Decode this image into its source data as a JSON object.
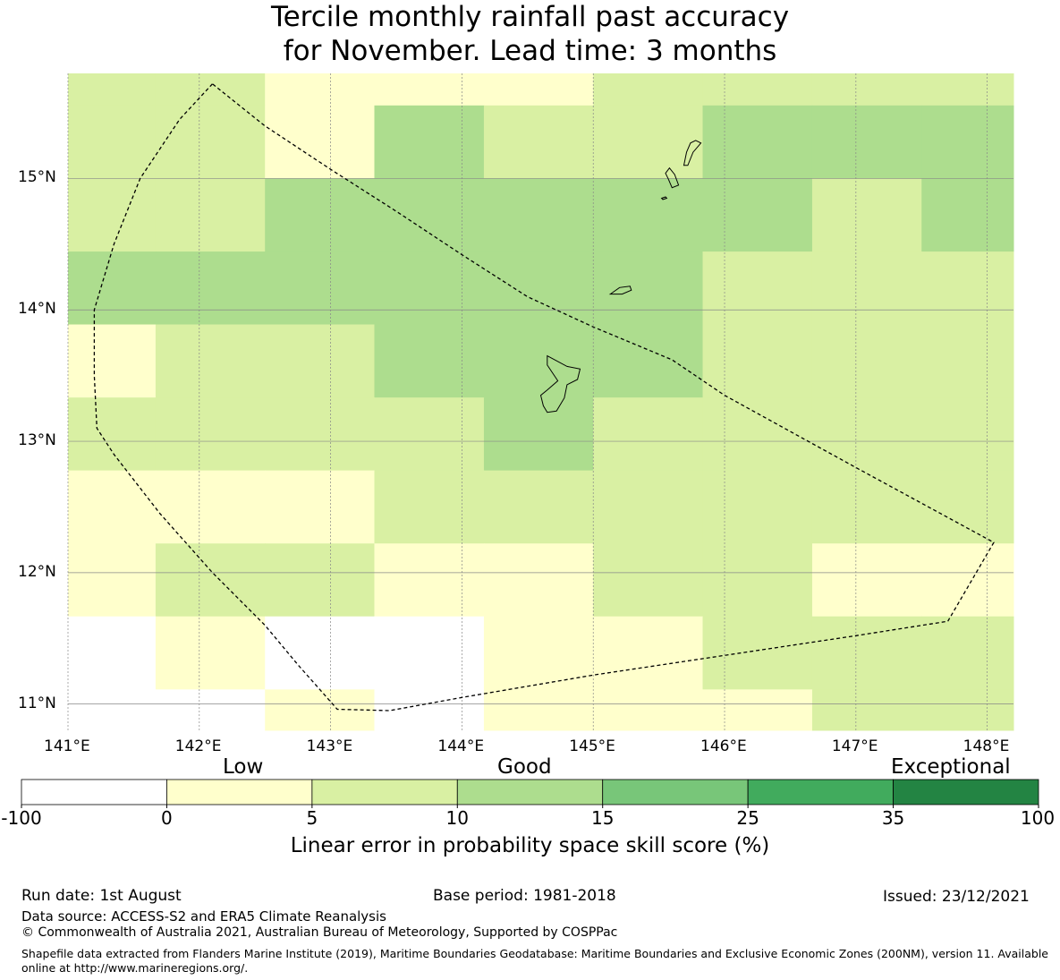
{
  "title": {
    "line1": "Tercile monthly rainfall past accuracy",
    "line2": "for November. Lead time: 3 months"
  },
  "map": {
    "lon_range": [
      141.0,
      148.2
    ],
    "lat_range": [
      10.8,
      15.8
    ],
    "lon_ticks": [
      {
        "value": 141,
        "label": "141°E"
      },
      {
        "value": 142,
        "label": "142°E"
      },
      {
        "value": 143,
        "label": "143°E"
      },
      {
        "value": 144,
        "label": "144°E"
      },
      {
        "value": 145,
        "label": "145°E"
      },
      {
        "value": 146,
        "label": "146°E"
      },
      {
        "value": 147,
        "label": "147°E"
      },
      {
        "value": 148,
        "label": "148°E"
      }
    ],
    "lat_ticks": [
      {
        "value": 15,
        "label": "15°N"
      },
      {
        "value": 14,
        "label": "14°N"
      },
      {
        "value": 13,
        "label": "13°N"
      },
      {
        "value": 12,
        "label": "12°N"
      },
      {
        "value": 11,
        "label": "11°N"
      }
    ],
    "grid_lon_edges": [
      141.0,
      141.667,
      142.5,
      143.333,
      144.167,
      145.0,
      145.833,
      146.667,
      147.5,
      148.2
    ],
    "grid_lat_edges": [
      15.8,
      15.556,
      15.0,
      14.444,
      13.889,
      13.333,
      12.778,
      12.222,
      11.667,
      11.111,
      10.8
    ],
    "cell_classes": [
      [
        2,
        2,
        1,
        1,
        1,
        2,
        2,
        2,
        2
      ],
      [
        2,
        2,
        1,
        3,
        2,
        2,
        3,
        3,
        3
      ],
      [
        2,
        2,
        3,
        3,
        3,
        3,
        3,
        2,
        3
      ],
      [
        3,
        3,
        3,
        3,
        3,
        3,
        2,
        2,
        2
      ],
      [
        1,
        2,
        2,
        3,
        3,
        3,
        2,
        2,
        2
      ],
      [
        2,
        2,
        2,
        2,
        3,
        2,
        2,
        2,
        2
      ],
      [
        1,
        1,
        1,
        2,
        2,
        2,
        2,
        2,
        2
      ],
      [
        1,
        2,
        2,
        1,
        1,
        2,
        2,
        1,
        1
      ],
      [
        0,
        1,
        0,
        0,
        1,
        1,
        2,
        2,
        2
      ],
      [
        0,
        0,
        1,
        0,
        1,
        1,
        1,
        2,
        2
      ]
    ],
    "eez_boundary": [
      [
        142.1,
        15.72
      ],
      [
        141.85,
        15.45
      ],
      [
        141.55,
        15.0
      ],
      [
        141.35,
        14.5
      ],
      [
        141.2,
        14.0
      ],
      [
        141.2,
        13.5
      ],
      [
        141.22,
        13.1
      ],
      [
        141.35,
        12.9
      ],
      [
        141.7,
        12.45
      ],
      [
        142.1,
        12.0
      ],
      [
        142.5,
        11.6
      ],
      [
        142.75,
        11.3
      ],
      [
        143.05,
        10.96
      ],
      [
        143.45,
        10.95
      ],
      [
        144.0,
        11.05
      ],
      [
        145.0,
        11.22
      ],
      [
        146.0,
        11.37
      ],
      [
        147.0,
        11.52
      ],
      [
        147.7,
        11.63
      ],
      [
        148.05,
        12.23
      ],
      [
        147.0,
        12.8
      ],
      [
        146.0,
        13.35
      ],
      [
        145.6,
        13.62
      ],
      [
        145.0,
        13.87
      ],
      [
        144.5,
        14.1
      ],
      [
        144.0,
        14.42
      ],
      [
        143.5,
        14.75
      ],
      [
        143.0,
        15.07
      ],
      [
        142.5,
        15.4
      ],
      [
        142.1,
        15.72
      ]
    ],
    "islands": [
      {
        "name": "guam",
        "points": [
          [
            144.65,
            13.65
          ],
          [
            144.8,
            13.57
          ],
          [
            144.9,
            13.55
          ],
          [
            144.88,
            13.47
          ],
          [
            144.8,
            13.43
          ],
          [
            144.78,
            13.33
          ],
          [
            144.72,
            13.23
          ],
          [
            144.65,
            13.22
          ],
          [
            144.62,
            13.27
          ],
          [
            144.6,
            13.35
          ],
          [
            144.65,
            13.39
          ],
          [
            144.73,
            13.46
          ],
          [
            144.65,
            13.58
          ]
        ]
      },
      {
        "name": "rota",
        "points": [
          [
            145.13,
            14.12
          ],
          [
            145.2,
            14.17
          ],
          [
            145.28,
            14.18
          ],
          [
            145.29,
            14.15
          ],
          [
            145.22,
            14.12
          ],
          [
            145.16,
            14.12
          ]
        ]
      },
      {
        "name": "tinian",
        "points": [
          [
            145.58,
            15.08
          ],
          [
            145.62,
            15.03
          ],
          [
            145.65,
            14.95
          ],
          [
            145.6,
            14.93
          ],
          [
            145.57,
            15.0
          ],
          [
            145.55,
            15.04
          ]
        ]
      },
      {
        "name": "saipan",
        "points": [
          [
            145.71,
            15.2
          ],
          [
            145.74,
            15.27
          ],
          [
            145.78,
            15.29
          ],
          [
            145.82,
            15.27
          ],
          [
            145.76,
            15.2
          ],
          [
            145.72,
            15.1
          ],
          [
            145.69,
            15.1
          ]
        ]
      },
      {
        "name": "aguijan",
        "points": [
          [
            145.52,
            14.85
          ],
          [
            145.55,
            14.86
          ],
          [
            145.56,
            14.85
          ],
          [
            145.53,
            14.84
          ]
        ]
      }
    ],
    "grid_color": "#888888"
  },
  "colorbar": {
    "category_labels": [
      "Low",
      "Good",
      "Exceptional"
    ],
    "tick_labels": [
      "-100",
      "0",
      "5",
      "10",
      "15",
      "25",
      "35",
      "100"
    ],
    "colors": [
      "#ffffff",
      "#ffffcc",
      "#d9f0a3",
      "#addd8e",
      "#78c679",
      "#41ab5d",
      "#238443"
    ],
    "title": "Linear error in probability space skill score (%)"
  },
  "footer": {
    "run_date": "Run date: 1st August",
    "base_period": "Base period: 1981-2018",
    "issued": "Issued: 23/12/2021",
    "data_source": "Data source: ACCESS-S2 and ERA5 Climate Reanalysis",
    "copyright": "© Commonwealth of Australia 2021, Australian Bureau of Meteorology, Supported by COSPPac",
    "shapefile_note": "Shapefile data extracted from Flanders Marine Institute (2019), Maritime Boundaries Geodatabase: Maritime Boundaries and Exclusive Economic Zones (200NM), version 11. Available online at http://www.marineregions.org/."
  }
}
